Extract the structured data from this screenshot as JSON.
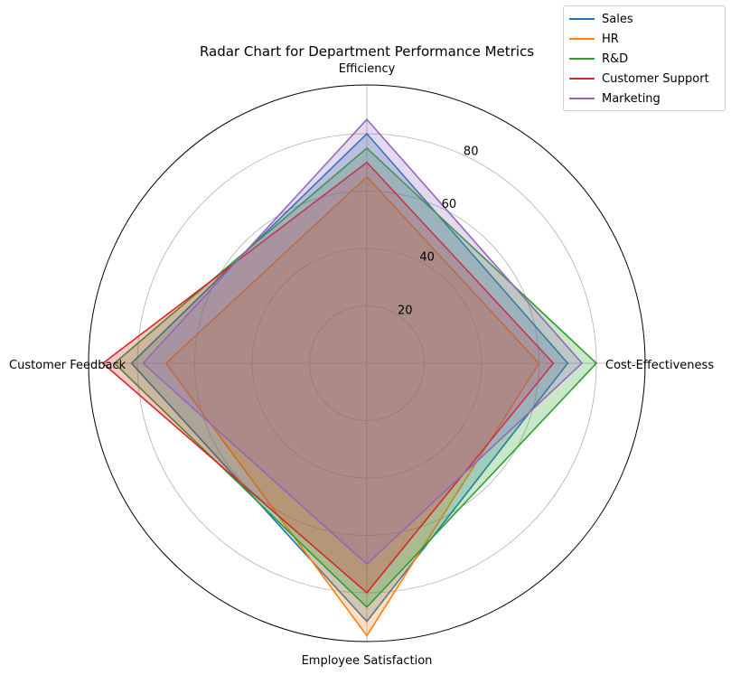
{
  "chart_data": {
    "type": "radar",
    "title": "Radar Chart for Department Performance Metrics",
    "categories": [
      "Efficiency",
      "Cost-Effectiveness",
      "Employee Satisfaction",
      "Customer Feedback"
    ],
    "rticks": [
      20,
      40,
      60,
      80
    ],
    "rlim": [
      0,
      97
    ],
    "grid": true,
    "legend_position": "top-right",
    "series": [
      {
        "name": "Sales",
        "color": "#1f77b4",
        "values": [
          80,
          70,
          90,
          82
        ]
      },
      {
        "name": "HR",
        "color": "#ff7f0e",
        "values": [
          65,
          60,
          95,
          70
        ]
      },
      {
        "name": "R&D",
        "color": "#2ca02c",
        "values": [
          75,
          80,
          85,
          88
        ]
      },
      {
        "name": "Customer Support",
        "color": "#d62728",
        "values": [
          70,
          65,
          80,
          92
        ]
      },
      {
        "name": "Marketing",
        "color": "#9467bd",
        "values": [
          85,
          75,
          70,
          78
        ]
      }
    ]
  }
}
